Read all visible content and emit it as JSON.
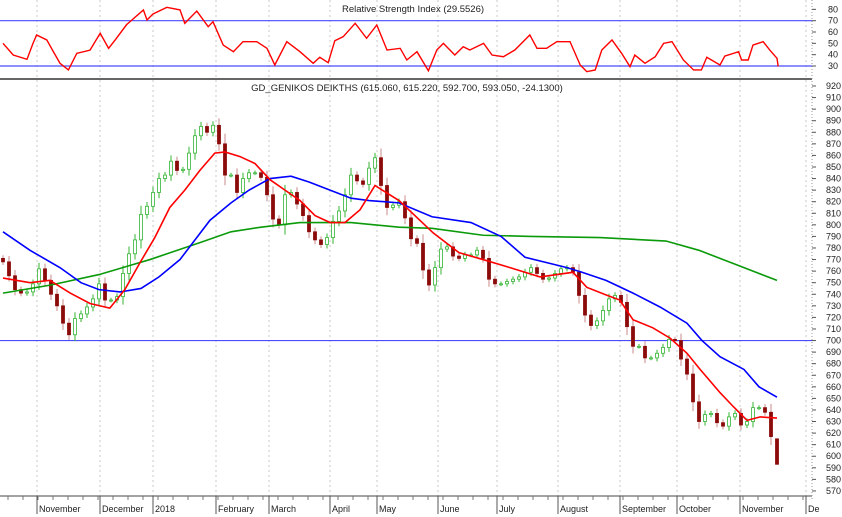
{
  "chart_data": [
    {
      "type": "line",
      "title": "Relative Strength Index",
      "last_value": "29.5526",
      "ylim": [
        25,
        85
      ],
      "yticks": [
        80,
        70,
        60,
        50,
        40,
        30
      ],
      "reference_lines": [
        70,
        30
      ],
      "colors": {
        "rsi": "#ff0000",
        "reference": "#4a4aff"
      },
      "rsi_points": [
        [
          0,
          50
        ],
        [
          1.7,
          39.7
        ],
        [
          4,
          35.9
        ],
        [
          5,
          50
        ],
        [
          5.6,
          57.4
        ],
        [
          7.3,
          53
        ],
        [
          8.4,
          42.6
        ],
        [
          9.5,
          32.4
        ],
        [
          10.9,
          26.5
        ],
        [
          12.3,
          41.2
        ],
        [
          14.5,
          44
        ],
        [
          16.2,
          58.9
        ],
        [
          17.6,
          45.6
        ],
        [
          18.7,
          53
        ],
        [
          20.6,
          66.5
        ],
        [
          23.4,
          79.5
        ],
        [
          24,
          70.6
        ],
        [
          25,
          75.9
        ],
        [
          27.3,
          81.8
        ],
        [
          29.5,
          79.5
        ],
        [
          30.3,
          67.7
        ],
        [
          32.3,
          78.5
        ],
        [
          34.2,
          64.7
        ],
        [
          35,
          69.1
        ],
        [
          36.7,
          48.5
        ],
        [
          38.4,
          42.6
        ],
        [
          40,
          51.5
        ],
        [
          42.3,
          51.5
        ],
        [
          44,
          45.6
        ],
        [
          45.3,
          30.9
        ],
        [
          47.3,
          51.5
        ],
        [
          49.5,
          42.6
        ],
        [
          51.7,
          32.4
        ],
        [
          52.8,
          37.7
        ],
        [
          54.2,
          32.9
        ],
        [
          55.3,
          52.3
        ],
        [
          56.7,
          55.9
        ],
        [
          58.7,
          67.7
        ],
        [
          60.6,
          54.5
        ],
        [
          62.3,
          66.2
        ],
        [
          64,
          44.1
        ],
        [
          66.2,
          45.6
        ],
        [
          67.3,
          35.3
        ],
        [
          69,
          42.6
        ],
        [
          70.9,
          25.8
        ],
        [
          72.3,
          44.1
        ],
        [
          73.4,
          50
        ],
        [
          75.3,
          39.7
        ],
        [
          76.7,
          47
        ],
        [
          77.8,
          44.1
        ],
        [
          80.1,
          50
        ],
        [
          81.5,
          39.7
        ],
        [
          83.4,
          38.2
        ],
        [
          85.3,
          44.1
        ],
        [
          86.7,
          51.5
        ],
        [
          87.8,
          57.4
        ],
        [
          89,
          45.6
        ],
        [
          90.6,
          45.6
        ],
        [
          92.3,
          51.5
        ],
        [
          94.5,
          51.5
        ],
        [
          96.2,
          30.9
        ],
        [
          97.3,
          25
        ],
        [
          98.7,
          26.5
        ],
        [
          99.8,
          44.1
        ],
        [
          101.5,
          53
        ],
        [
          103.1,
          41.2
        ],
        [
          104.5,
          29.4
        ],
        [
          105.3,
          39.7
        ],
        [
          107,
          32.4
        ],
        [
          108.7,
          38.2
        ],
        [
          110.1,
          50
        ],
        [
          111.5,
          51.5
        ],
        [
          113.4,
          35.3
        ],
        [
          115.1,
          26.5
        ],
        [
          116.4,
          26.5
        ],
        [
          117.3,
          37.7
        ],
        [
          119.5,
          30.9
        ],
        [
          120.3,
          38.8
        ],
        [
          122.6,
          42.6
        ],
        [
          123.1,
          35.3
        ],
        [
          124.2,
          35.3
        ],
        [
          125,
          48.5
        ],
        [
          126.7,
          51.5
        ],
        [
          127.8,
          44.1
        ],
        [
          129,
          36.8
        ],
        [
          129.2,
          29.55
        ]
      ]
    },
    {
      "type": "candlestick",
      "title": "GD_GENIKOS DEIKTHS",
      "last_bar": {
        "open": "615.060",
        "high": "615.220",
        "low": "592.700",
        "close": "593.050",
        "change": "-24.1300"
      },
      "ylim": [
        565,
        925
      ],
      "yticks": [
        920,
        910,
        900,
        890,
        880,
        870,
        860,
        850,
        840,
        830,
        820,
        810,
        800,
        790,
        780,
        770,
        760,
        750,
        740,
        730,
        720,
        710,
        700,
        690,
        680,
        670,
        660,
        650,
        640,
        630,
        620,
        610,
        600,
        590,
        580,
        570
      ],
      "reference_line": 700,
      "x_labels": [
        "November",
        "December",
        "2018",
        "February",
        "March",
        "April",
        "May",
        "June",
        "July",
        "August",
        "September",
        "October",
        "November",
        "De"
      ],
      "colors": {
        "up_outline": "#33b533",
        "down_fill": "#8b0a0a",
        "ma_short": "#ff0000",
        "ma_mid": "#0000ff",
        "ma_long": "#0a9a0a",
        "reference": "#4a4aff"
      },
      "closes": [
        768,
        756,
        744,
        741,
        742,
        749,
        762,
        752,
        740,
        730,
        715,
        705,
        719,
        723,
        729,
        736,
        749,
        735,
        735,
        738,
        758,
        775,
        787,
        809,
        816,
        828,
        840,
        843,
        855,
        847,
        848,
        862,
        877,
        885,
        880,
        886,
        870,
        843,
        843,
        828,
        840,
        845,
        845,
        841,
        826,
        805,
        800,
        826,
        828,
        818,
        808,
        794,
        787,
        783,
        789,
        803,
        812,
        826,
        843,
        838,
        835,
        849,
        858,
        834,
        815,
        817,
        820,
        806,
        788,
        784,
        761,
        748,
        763,
        779,
        781,
        773,
        771,
        774,
        774,
        778,
        771,
        753,
        749,
        749,
        751,
        753,
        755,
        759,
        763,
        758,
        753,
        754,
        758,
        762,
        763,
        759,
        739,
        722,
        713,
        717,
        726,
        736,
        739,
        733,
        712,
        695,
        695,
        685,
        685,
        689,
        694,
        701,
        700,
        684,
        671,
        647,
        630,
        636,
        637,
        629,
        626,
        634,
        637,
        627,
        630,
        642,
        642,
        638,
        617,
        593.05
      ],
      "ma_short": [
        [
          0,
          754
        ],
        [
          4.5,
          750
        ],
        [
          7.8,
          752
        ],
        [
          11.2,
          741
        ],
        [
          14.5,
          732
        ],
        [
          17.8,
          728
        ],
        [
          20.3,
          744
        ],
        [
          22.8,
          767
        ],
        [
          25.3,
          789
        ],
        [
          27.8,
          815
        ],
        [
          30.3,
          830
        ],
        [
          32.8,
          847
        ],
        [
          35.3,
          862
        ],
        [
          37,
          863
        ],
        [
          39.5,
          859
        ],
        [
          42,
          853
        ],
        [
          44.5,
          839
        ],
        [
          47,
          830
        ],
        [
          49.5,
          821
        ],
        [
          52,
          808
        ],
        [
          54.5,
          802
        ],
        [
          57,
          802
        ],
        [
          59.5,
          813
        ],
        [
          62,
          834
        ],
        [
          66,
          821
        ],
        [
          71.7,
          793
        ],
        [
          76,
          776
        ],
        [
          80,
          770
        ],
        [
          84.5,
          763
        ],
        [
          89.5,
          755
        ],
        [
          95,
          759
        ],
        [
          97.3,
          746
        ],
        [
          100.7,
          739
        ],
        [
          102.8,
          735
        ],
        [
          105,
          718
        ],
        [
          108.3,
          711
        ],
        [
          111.2,
          702
        ],
        [
          114,
          689
        ],
        [
          116.2,
          675
        ],
        [
          119.5,
          655
        ],
        [
          121.7,
          643
        ],
        [
          124,
          631
        ],
        [
          126.2,
          634
        ],
        [
          129,
          633
        ]
      ],
      "ma_mid": [
        [
          0,
          794
        ],
        [
          4.5,
          778
        ],
        [
          9.5,
          763
        ],
        [
          13,
          750
        ],
        [
          16,
          744
        ],
        [
          19.5,
          742
        ],
        [
          23,
          745
        ],
        [
          26,
          755
        ],
        [
          29.5,
          770
        ],
        [
          32,
          787
        ],
        [
          34.5,
          804
        ],
        [
          38,
          819
        ],
        [
          41,
          830
        ],
        [
          44.5,
          840
        ],
        [
          48,
          842
        ],
        [
          51,
          837
        ],
        [
          54.5,
          830
        ],
        [
          58,
          823
        ],
        [
          61,
          821
        ],
        [
          66,
          819
        ],
        [
          71.5,
          807
        ],
        [
          78,
          802
        ],
        [
          83,
          790
        ],
        [
          87,
          772
        ],
        [
          94,
          763
        ],
        [
          96.5,
          759
        ],
        [
          100.5,
          752
        ],
        [
          105,
          741
        ],
        [
          109.5,
          729
        ],
        [
          114,
          715
        ],
        [
          116.5,
          700
        ],
        [
          119.5,
          686
        ],
        [
          123.5,
          675
        ],
        [
          126,
          660
        ],
        [
          129,
          651
        ]
      ],
      "ma_long": [
        [
          0,
          741
        ],
        [
          8,
          748
        ],
        [
          16,
          757
        ],
        [
          24.5,
          770
        ],
        [
          33,
          785
        ],
        [
          38,
          794
        ],
        [
          43,
          798
        ],
        [
          49.5,
          802
        ],
        [
          58,
          802
        ],
        [
          66,
          798
        ],
        [
          71.5,
          797
        ],
        [
          80,
          791
        ],
        [
          88,
          790
        ],
        [
          99.5,
          789
        ],
        [
          110.5,
          786
        ],
        [
          116,
          778
        ],
        [
          121.5,
          767
        ],
        [
          129,
          752
        ]
      ]
    }
  ]
}
